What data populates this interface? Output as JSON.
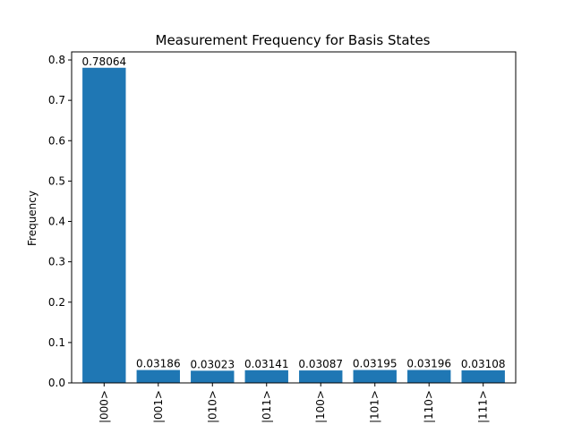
{
  "chart_data": {
    "type": "bar",
    "title": "Measurement Frequency for Basis States",
    "xlabel": "",
    "ylabel": "Frequency",
    "ylim": [
      0,
      0.82
    ],
    "yticks": [
      0.0,
      0.1,
      0.2,
      0.3,
      0.4,
      0.5,
      0.6,
      0.7,
      0.8
    ],
    "ytick_labels": [
      "0.0",
      "0.1",
      "0.2",
      "0.3",
      "0.4",
      "0.5",
      "0.6",
      "0.7",
      "0.8"
    ],
    "categories": [
      "|000>",
      "|001>",
      "|010>",
      "|011>",
      "|100>",
      "|101>",
      "|110>",
      "|111>"
    ],
    "values": [
      0.78064,
      0.03186,
      0.03023,
      0.03141,
      0.03087,
      0.03195,
      0.03196,
      0.03108
    ],
    "value_labels": [
      "0.78064",
      "0.03186",
      "0.03023",
      "0.03141",
      "0.03087",
      "0.03195",
      "0.03196",
      "0.03108"
    ],
    "bar_color": "#1f77b4",
    "grid": false,
    "legend": false
  }
}
